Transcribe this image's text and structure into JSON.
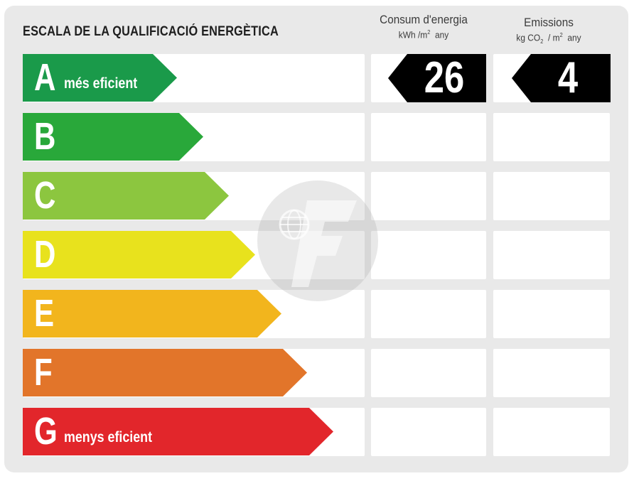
{
  "title": "ESCALA DE LA QUALIFICACIÓ ENERGÈTICA",
  "consum": {
    "heading": "Consum d'energia",
    "unit_kwh": "kWh /m",
    "unit_sup": "2",
    "unit_any": "any",
    "value": "26"
  },
  "emissions": {
    "heading": "Emissions",
    "unit_kg": "kg CO",
    "unit_sub": "2",
    "unit_sep": "/ m",
    "unit_sup": "2",
    "unit_any": "any",
    "value": "4"
  },
  "classes": [
    {
      "letter": "A",
      "label": "més eficient",
      "color": "#1a9a4a"
    },
    {
      "letter": "B",
      "label": "",
      "color": "#29a83a"
    },
    {
      "letter": "C",
      "label": "",
      "color": "#8cc63f"
    },
    {
      "letter": "D",
      "label": "",
      "color": "#e8e21d"
    },
    {
      "letter": "E",
      "label": "",
      "color": "#f2b51d"
    },
    {
      "letter": "F",
      "label": "",
      "color": "#e2752a"
    },
    {
      "letter": "G",
      "label": "menys eficient",
      "color": "#e2262b"
    }
  ],
  "current_class": "A",
  "watermark_icon": "logo-watermark-icon"
}
